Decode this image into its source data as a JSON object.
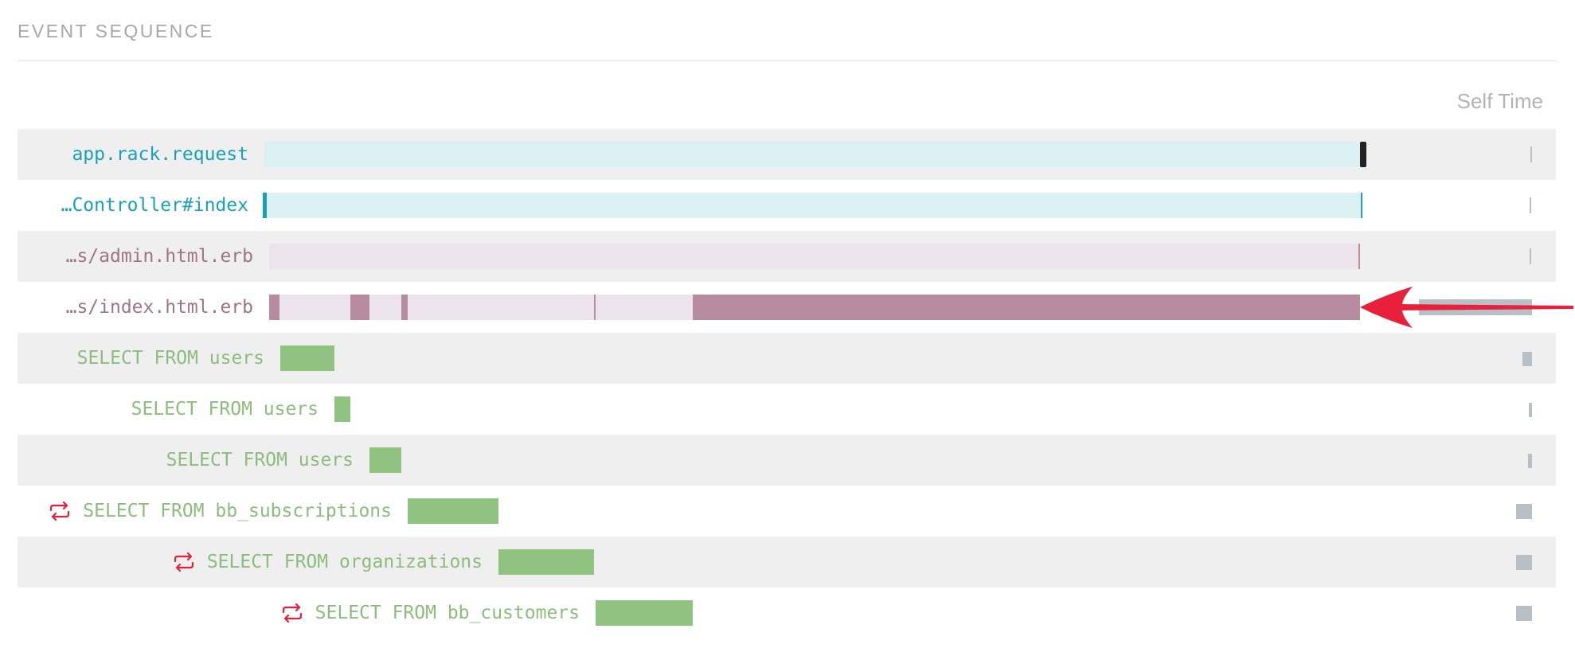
{
  "section_title": "EVENT SEQUENCE",
  "self_time_header": "Self Time",
  "colors": {
    "app_text": "#17a2b8",
    "app_bar": "#daf0f3",
    "view_text": "#a07488",
    "view_bar": "#ece3ec",
    "view_dark": "#b88ca0",
    "sql_text": "#8cbd7c",
    "sql_bar": "#90c380",
    "loop_icon": "#e8203c",
    "self_bar": "#b6c0c6",
    "arrow": "#e8203c"
  },
  "rows": [
    {
      "label": "app.rack.request",
      "kind": "app",
      "icon": null
    },
    {
      "label": "…Controller#index",
      "kind": "app",
      "icon": null
    },
    {
      "label": "…s/admin.html.erb",
      "kind": "view",
      "icon": null
    },
    {
      "label": "…s/index.html.erb",
      "kind": "view",
      "icon": null
    },
    {
      "label": "SELECT FROM users",
      "kind": "sql",
      "icon": null
    },
    {
      "label": "SELECT FROM users",
      "kind": "sql",
      "icon": null
    },
    {
      "label": "SELECT FROM users",
      "kind": "sql",
      "icon": null
    },
    {
      "label": "SELECT FROM bb_subscriptions",
      "kind": "sql",
      "icon": "loop-icon"
    },
    {
      "label": "SELECT FROM organizations",
      "kind": "sql",
      "icon": "loop-icon"
    },
    {
      "label": "SELECT FROM bb_customers",
      "kind": "sql",
      "icon": "loop-icon"
    }
  ]
}
